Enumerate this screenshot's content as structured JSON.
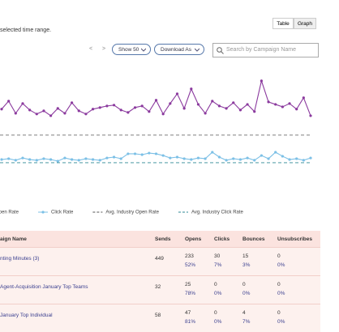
{
  "header": {
    "subtitle": "selected time range.",
    "view_buttons": [
      "Table",
      "Graph"
    ]
  },
  "toolbar": {
    "prev": "<",
    "next": ">",
    "show": "Show 50",
    "download": "Download As",
    "search_placeholder": "Search by Campaign Name"
  },
  "chart_data": {
    "type": "line",
    "categories": [
      null,
      null,
      null,
      null,
      null,
      null,
      null,
      null,
      null,
      null,
      null,
      null,
      null,
      null,
      null,
      null,
      null,
      null,
      null,
      null,
      null,
      null,
      null,
      null,
      null,
      null,
      null,
      null,
      null,
      null,
      null,
      null,
      null,
      null,
      null,
      null,
      null,
      null,
      null,
      null,
      null,
      null,
      null,
      null,
      null
    ],
    "series": [
      {
        "name": "Open Rate",
        "color": "#8b3a9e",
        "values": [
          39.6,
          45.2,
          36.7,
          43.5,
          39.0,
          36.2,
          38.4,
          35.0,
          40.1,
          36.7,
          44.1,
          38.4,
          36.2,
          39.6,
          40.7,
          41.8,
          42.4,
          39.0,
          37.3,
          40.7,
          41.8,
          37.9,
          45.8,
          36.2,
          43.5,
          50.3,
          40.1,
          53.7,
          42.9,
          36.7,
          45.2,
          41.8,
          40.1,
          44.1,
          39.0,
          42.9,
          37.9,
          59.3,
          44.6,
          42.9,
          41.2,
          43.5,
          39.6,
          47.5,
          35.0
        ]
      },
      {
        "name": "Click Rate",
        "color": "#7cc0e6",
        "values": [
          4.5,
          5.1,
          4.0,
          5.6,
          4.5,
          4.0,
          5.1,
          4.5,
          3.4,
          5.6,
          4.5,
          4.0,
          5.1,
          4.5,
          4.0,
          5.6,
          6.2,
          5.1,
          8.5,
          8.5,
          7.9,
          9.0,
          8.5,
          7.3,
          5.6,
          6.2,
          5.1,
          4.5,
          5.6,
          5.1,
          9.6,
          6.2,
          4.0,
          5.1,
          4.5,
          5.6,
          4.0,
          7.3,
          5.1,
          9.6,
          6.8,
          4.5,
          5.1,
          4.0,
          5.6
        ]
      }
    ],
    "reference_lines": [
      {
        "name": "Avg. Industry Open Rate",
        "value": 21.5,
        "color": "#555555"
      },
      {
        "name": "Avg. Industry Click Rate",
        "value": 2.3,
        "color": "#2f8a95"
      }
    ],
    "ylim": [
      0,
      75
    ]
  },
  "table": {
    "columns": [
      "aign Name",
      "Sends",
      "Opens",
      "Clicks",
      "Bounces",
      "Unsubscribes"
    ],
    "rows": [
      {
        "name": "nting Minutes (3)",
        "sends": 449,
        "cells": [
          [
            233,
            "52%"
          ],
          [
            30,
            "7%"
          ],
          [
            15,
            "3%"
          ],
          [
            0,
            "0%"
          ]
        ]
      },
      {
        "name": "Agent-Acquisition January Top Teams",
        "sends": 32,
        "cells": [
          [
            25,
            "78%"
          ],
          [
            0,
            "0%"
          ],
          [
            0,
            "0%"
          ],
          [
            0,
            "0%"
          ]
        ]
      },
      {
        "name": "January Top Individual",
        "sends": 58,
        "cells": [
          [
            47,
            "81%"
          ],
          [
            0,
            "0%"
          ],
          [
            4,
            "7%"
          ],
          [
            0,
            "0%"
          ]
        ]
      }
    ]
  }
}
